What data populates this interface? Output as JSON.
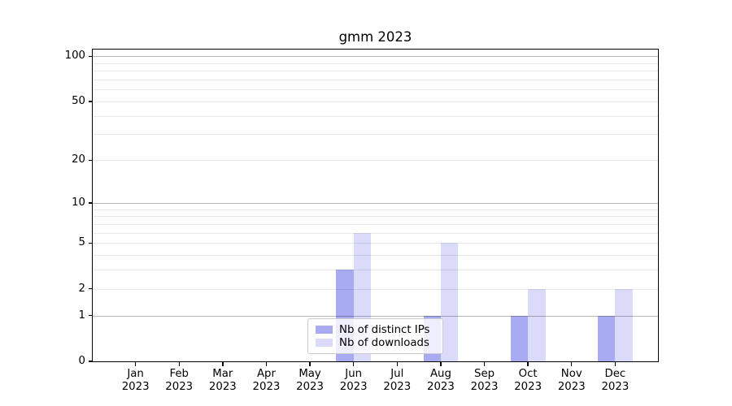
{
  "title": "gmm 2023",
  "chart_data": {
    "type": "bar",
    "title": "gmm 2023",
    "categories": [
      "Jan 2023",
      "Feb 2023",
      "Mar 2023",
      "Apr 2023",
      "May 2023",
      "Jun 2023",
      "Jul 2023",
      "Aug 2023",
      "Sep 2023",
      "Oct 2023",
      "Nov 2023",
      "Dec 2023"
    ],
    "x_tick_labels": [
      [
        "Jan",
        "2023"
      ],
      [
        "Feb",
        "2023"
      ],
      [
        "Mar",
        "2023"
      ],
      [
        "Apr",
        "2023"
      ],
      [
        "May",
        "2023"
      ],
      [
        "Jun",
        "2023"
      ],
      [
        "Jul",
        "2023"
      ],
      [
        "Aug",
        "2023"
      ],
      [
        "Sep",
        "2023"
      ],
      [
        "Oct",
        "2023"
      ],
      [
        "Nov",
        "2023"
      ],
      [
        "Dec",
        "2023"
      ]
    ],
    "series": [
      {
        "name": "Nb of distinct IPs",
        "color": "#a8aaf2",
        "values": [
          0,
          0,
          0,
          0,
          0,
          3,
          0,
          1,
          0,
          1,
          0,
          1
        ]
      },
      {
        "name": "Nb of downloads",
        "color": "#d9dbf9",
        "values": [
          0,
          0,
          0,
          0,
          0,
          6,
          0,
          5,
          0,
          2,
          0,
          2
        ]
      }
    ],
    "xlabel": "",
    "ylabel": "",
    "y_scale": "log1p",
    "ylim": [
      0,
      113
    ],
    "y_axis_ticks": [
      0,
      1,
      2,
      5,
      10,
      20,
      50,
      100
    ],
    "y_major_gridlines": [
      1,
      10,
      100
    ],
    "y_minor_gridlines": [
      2,
      3,
      4,
      5,
      6,
      7,
      8,
      9,
      20,
      30,
      40,
      50,
      60,
      70,
      80,
      90
    ],
    "grid": true,
    "legend_position": "lower center"
  },
  "colors": {
    "background": "#ffffff",
    "axis": "#000000",
    "major_grid": "#b5b5b5",
    "minor_grid": "#e9e9e9",
    "legend_border": "#cccccc",
    "text": "#000000"
  }
}
